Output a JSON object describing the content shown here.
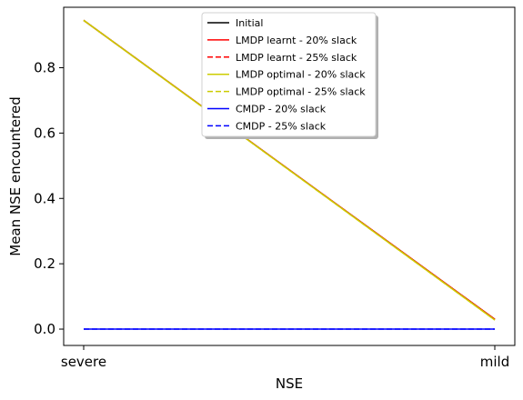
{
  "chart_data": {
    "type": "line",
    "title": "",
    "xlabel": "NSE",
    "ylabel": "Mean NSE encountered",
    "categories": [
      "severe",
      "mild"
    ],
    "ylim": [
      -0.05,
      0.985
    ],
    "yticks": [
      "0.0",
      "0.2",
      "0.4",
      "0.6",
      "0.8"
    ],
    "grid": false,
    "legend_position": "top-center",
    "series": [
      {
        "name": "Initial",
        "values": [
          0.945,
          0.03
        ],
        "color": "#000000",
        "dash": "solid"
      },
      {
        "name": "LMDP learnt - 20% slack",
        "values": [
          0.945,
          0.03
        ],
        "color": "#ff0000",
        "dash": "solid"
      },
      {
        "name": "LMDP learnt - 25% slack",
        "values": [
          0.945,
          0.03
        ],
        "color": "#ff0000",
        "dash": "dashed"
      },
      {
        "name": "LMDP optimal - 20% slack",
        "values": [
          0.945,
          0.028
        ],
        "color": "#cccc00",
        "dash": "solid"
      },
      {
        "name": "LMDP optimal - 25% slack",
        "values": [
          0.945,
          0.028
        ],
        "color": "#cccc00",
        "dash": "dashed"
      },
      {
        "name": "CMDP - 20% slack",
        "values": [
          0.0,
          0.0
        ],
        "color": "#0000ff",
        "dash": "solid"
      },
      {
        "name": "CMDP - 25% slack",
        "values": [
          0.0,
          0.0
        ],
        "color": "#0000ff",
        "dash": "dashed"
      }
    ]
  }
}
